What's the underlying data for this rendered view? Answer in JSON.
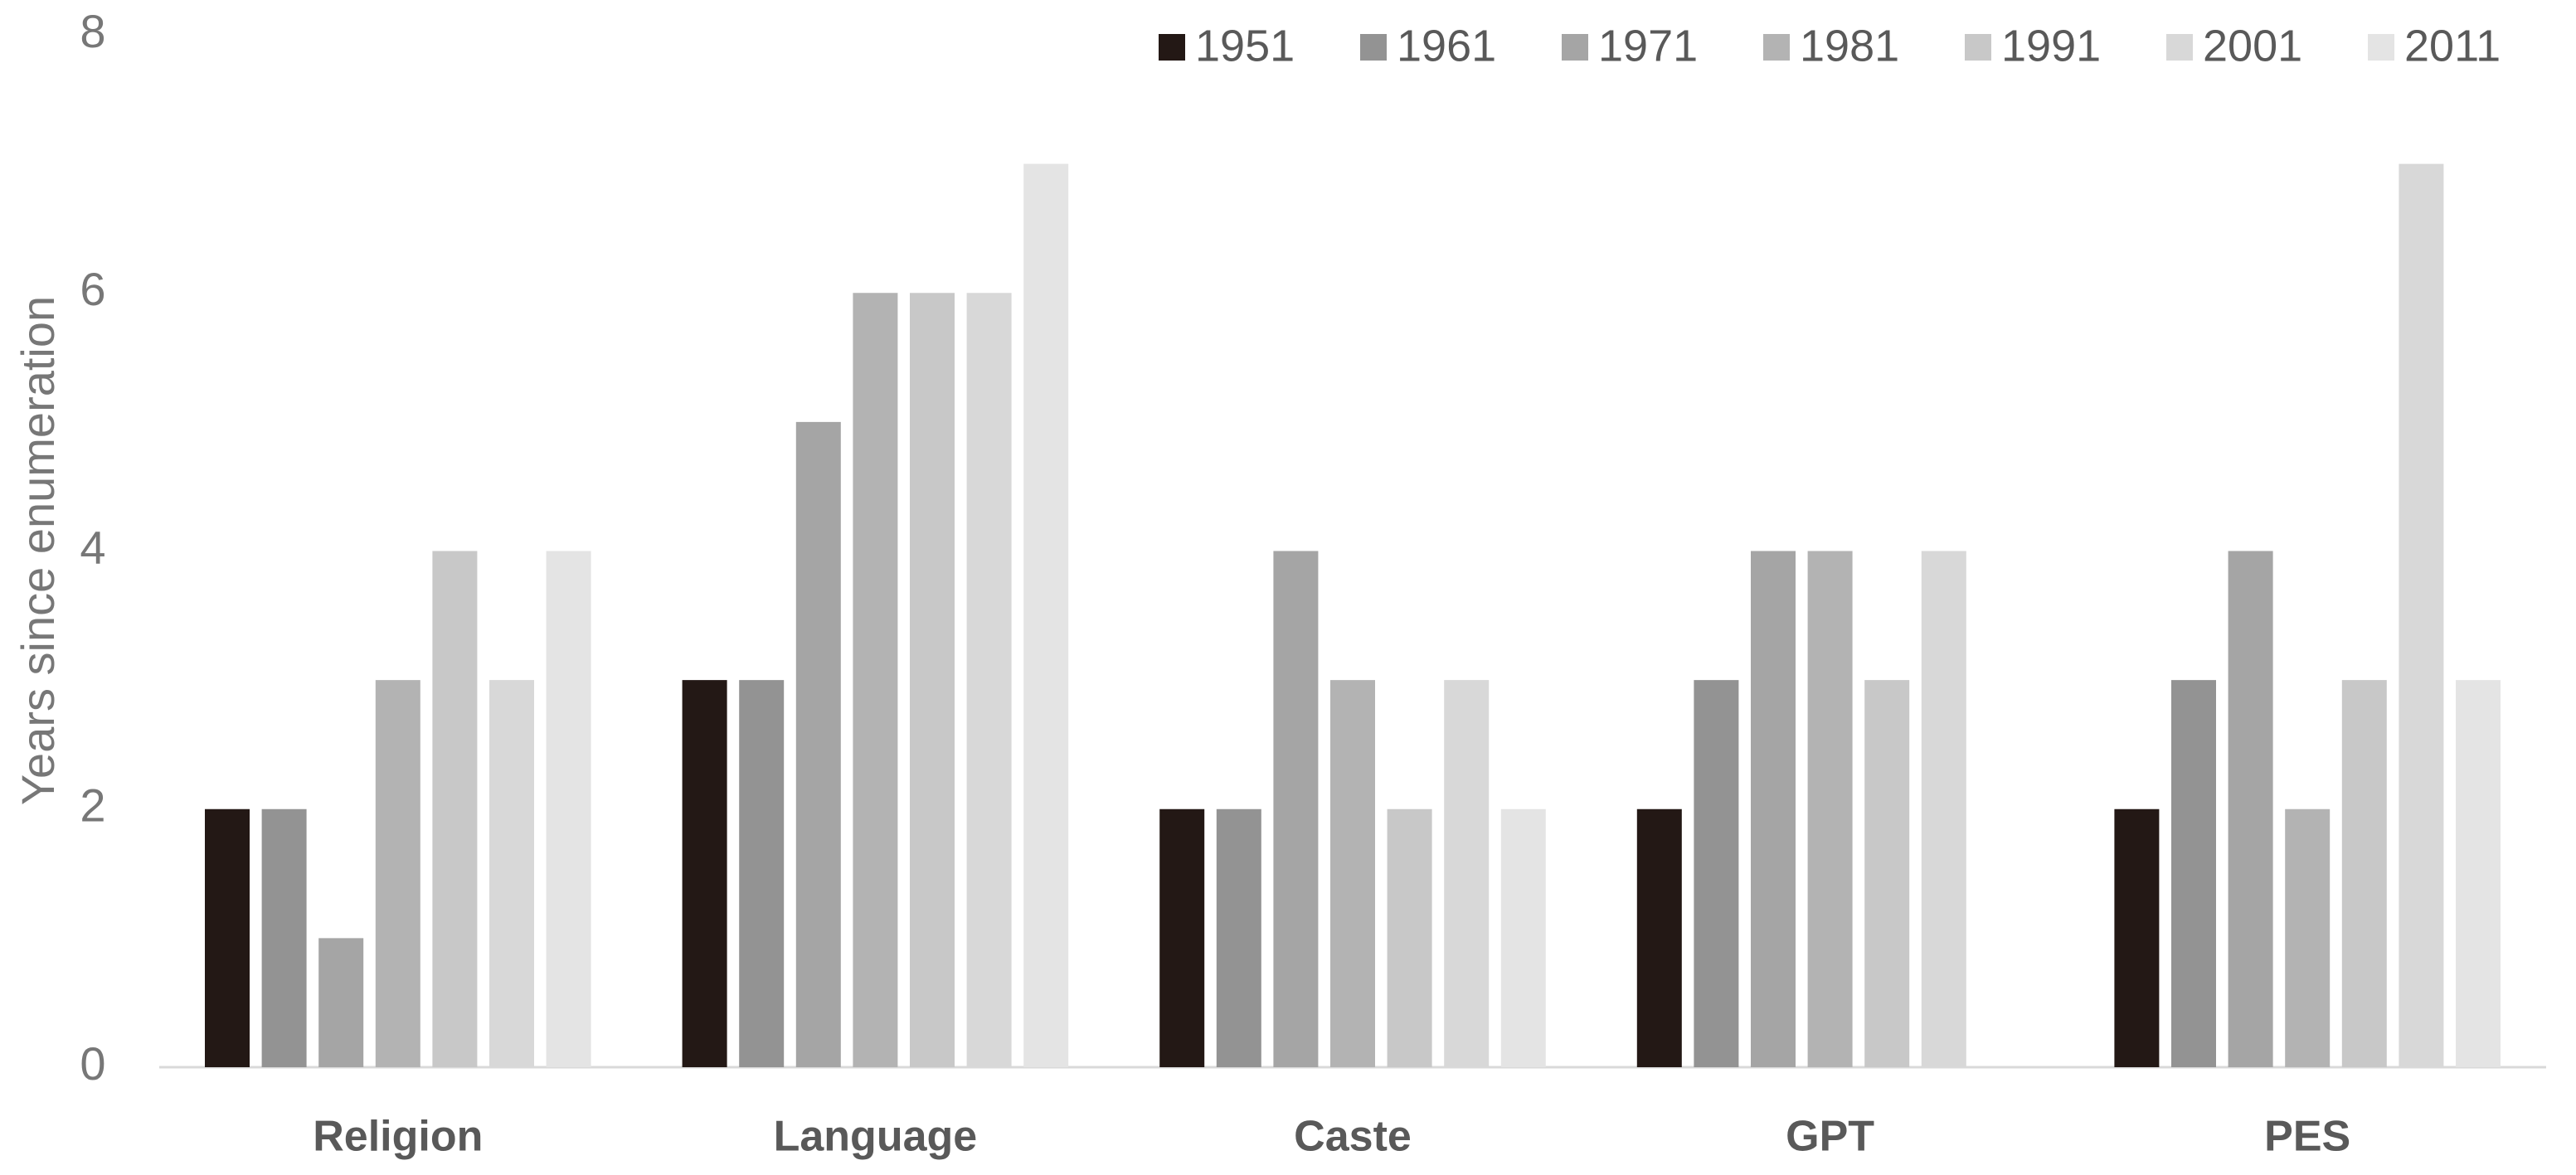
{
  "chart_data": {
    "type": "bar",
    "y_label": "Years since enumeration",
    "categories": [
      "Religion",
      "Language",
      "Caste",
      "GPT",
      "PES"
    ],
    "series": [
      {
        "name": "1951",
        "color": "#231815",
        "values": [
          2,
          3,
          2,
          2,
          2
        ]
      },
      {
        "name": "1961",
        "color": "#939393",
        "values": [
          2,
          3,
          2,
          3,
          3
        ]
      },
      {
        "name": "1971",
        "color": "#a5a5a5",
        "values": [
          1,
          5,
          4,
          4,
          4
        ]
      },
      {
        "name": "1981",
        "color": "#b3b3b3",
        "values": [
          3,
          6,
          3,
          4,
          2
        ]
      },
      {
        "name": "1991",
        "color": "#c8c8c8",
        "values": [
          4,
          6,
          2,
          3,
          3
        ]
      },
      {
        "name": "2001",
        "color": "#d8d8d8",
        "values": [
          3,
          6,
          3,
          4,
          7
        ]
      },
      {
        "name": "2011",
        "color": "#e4e4e4",
        "values": [
          4,
          7,
          2,
          null,
          3
        ]
      }
    ],
    "ylim": [
      0,
      8
    ],
    "yticks": [
      0,
      2,
      4,
      6,
      8
    ],
    "grid": false,
    "legend": "top-right"
  }
}
